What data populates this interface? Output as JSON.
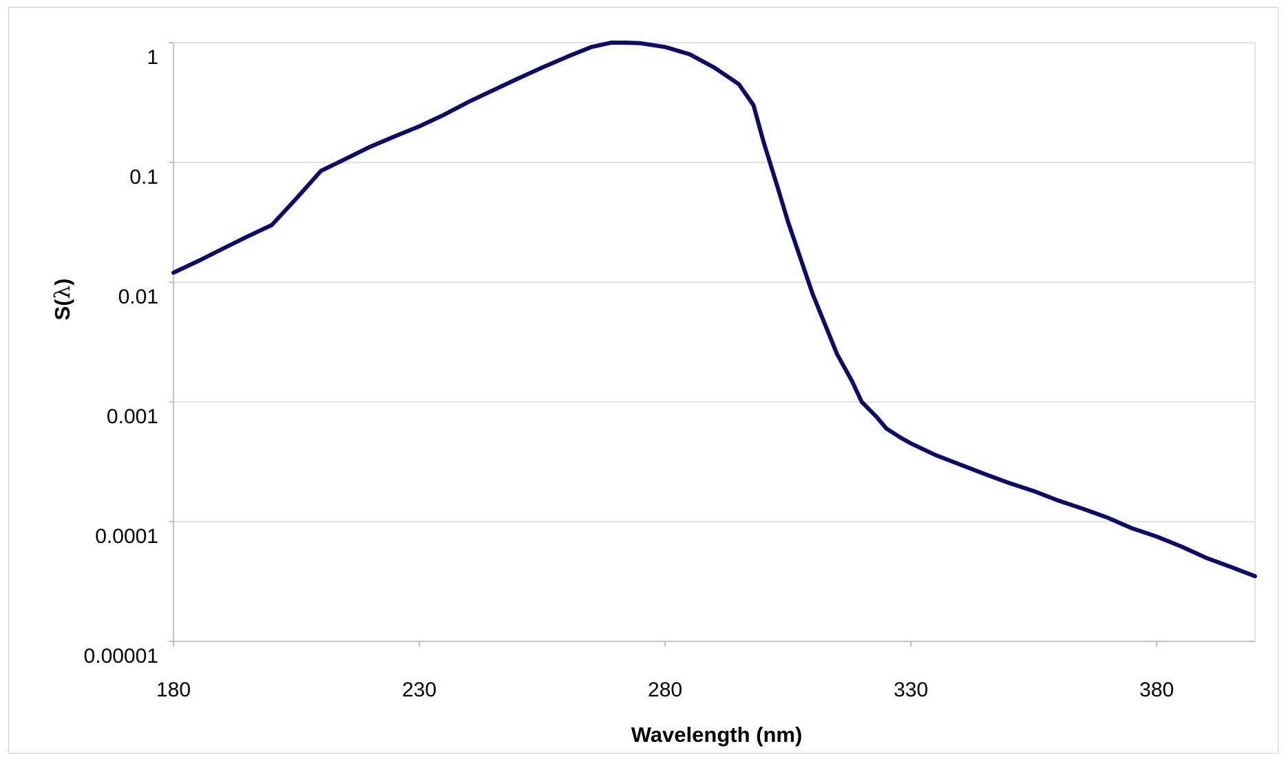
{
  "chart_data": {
    "type": "line",
    "title": "",
    "xlabel": "Wavelength (nm)",
    "ylabel_prefix": "S(",
    "ylabel_symbol": "λ",
    "ylabel_suffix": ")",
    "xlim": [
      180,
      400
    ],
    "ylim": [
      1e-05,
      1
    ],
    "yscale": "log",
    "grid": "horizontal",
    "legend": "none",
    "x_ticks": [
      180,
      230,
      280,
      330,
      380
    ],
    "x_tick_labels": [
      "180",
      "230",
      "280",
      "330",
      "380"
    ],
    "y_ticks": [
      1e-05,
      0.0001,
      0.001,
      0.01,
      0.1,
      1
    ],
    "y_tick_labels": [
      "0.00001",
      "0.0001",
      "0.001",
      "0.01",
      "0.1",
      "1"
    ],
    "series": [
      {
        "color": "#0b0b6e",
        "x": [
          180,
          185,
          190,
          195,
          200,
          205,
          210,
          215,
          220,
          225,
          230,
          235,
          240,
          245,
          250,
          255,
          260,
          265,
          269,
          272,
          275,
          280,
          285,
          290,
          295,
          298,
          300,
          303,
          305,
          310,
          315,
          318,
          320,
          323,
          325,
          328,
          330,
          335,
          340,
          345,
          350,
          355,
          360,
          365,
          370,
          375,
          380,
          385,
          390,
          395,
          400
        ],
        "y": [
          0.012,
          0.015,
          0.019,
          0.024,
          0.03,
          0.05,
          0.085,
          0.107,
          0.135,
          0.165,
          0.2,
          0.25,
          0.32,
          0.4,
          0.5,
          0.62,
          0.76,
          0.92,
          1.0,
          1.0,
          0.99,
          0.92,
          0.8,
          0.62,
          0.45,
          0.3,
          0.15,
          0.06,
          0.032,
          0.008,
          0.0025,
          0.0015,
          0.001,
          0.00075,
          0.0006,
          0.0005,
          0.00045,
          0.00036,
          0.0003,
          0.00025,
          0.00021,
          0.00018,
          0.00015,
          0.000128,
          0.000108,
          8.8e-05,
          7.5e-05,
          6.2e-05,
          5e-05,
          4.2e-05,
          3.5e-05
        ]
      }
    ]
  }
}
